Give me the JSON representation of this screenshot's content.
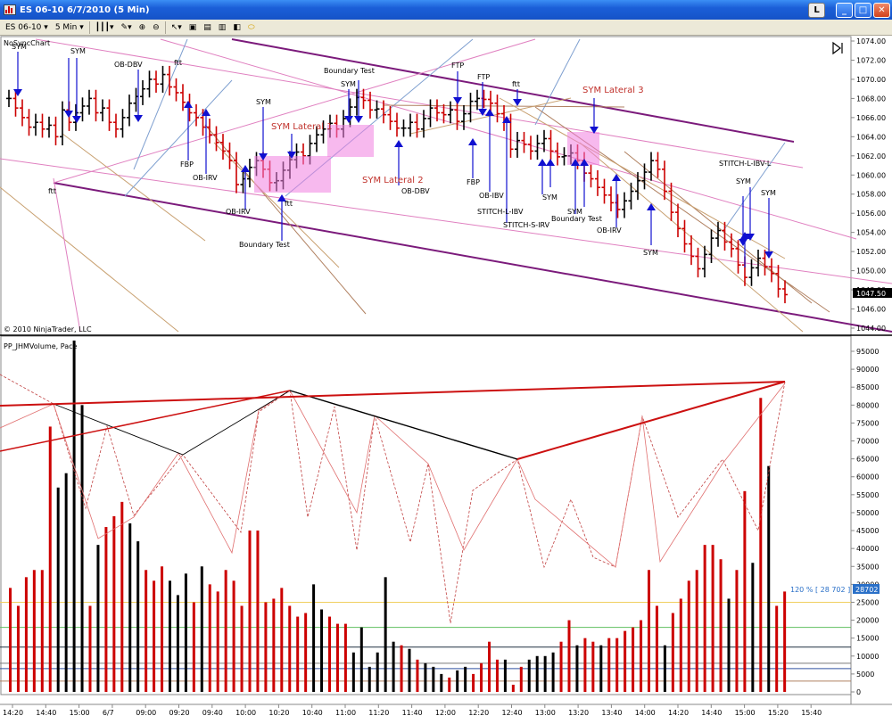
{
  "window": {
    "title": "ES 06-10  6/7/2010 (5 Min)",
    "l_button": "L",
    "min": "_",
    "max": "□",
    "close": "✕"
  },
  "toolbar": {
    "instrument": "ES 06-10",
    "interval": "5 Min"
  },
  "price_panel": {
    "chart_label": "NoSyncChart",
    "copyright": "© 2010 NinjaTrader, LLC",
    "last_price": "1047.50",
    "y_ticks": [
      "1074.00",
      "1072.00",
      "1070.00",
      "1068.00",
      "1066.00",
      "1064.00",
      "1062.00",
      "1060.00",
      "1058.00",
      "1056.00",
      "1054.00",
      "1052.00",
      "1050.00",
      "1048.00",
      "1046.00",
      "1044.00"
    ],
    "annotations": {
      "sym_a": "SYM",
      "sym_b": "SYM",
      "ob_dbv_a": "OB-DBV",
      "ftt_a": "ftt",
      "ftt_b": "ftt",
      "fbp_a": "FBP",
      "ob_irv_a": "OB-IRV",
      "sym_c": "SYM",
      "ob_irv_b": "OB-IRV",
      "boundary_a": "Boundary Test",
      "ftt_c": "ftt",
      "sym_lateral_1": "SYM Lateral 1",
      "boundary_b": "Boundary Test",
      "sym_d": "SYM",
      "sym_lateral_2": "SYM Lateral 2",
      "ob_dbv_b": "OB-DBV",
      "ftp_a": "FTP",
      "ftp_b": "FTP",
      "ftt_d": "ftt",
      "fbp_b": "FBP",
      "ob_ibv": "OB-IBV",
      "stitch_l_ibv": "STITCH-L-IBV",
      "stitch_s_irv": "STITCH-S-IRV",
      "sym_e": "SYM",
      "sym_lateral_3": "SYM Lateral 3",
      "sym_f": "SYM",
      "boundary_c": "Boundary Test",
      "ob_irv_c": "OB-IRV",
      "sym_g": "SYM",
      "stitch_l_ibv_l": "STITCH-L-IBV-L",
      "sym_h": "SYM",
      "sym_i": "SYM"
    }
  },
  "volume_panel": {
    "label": "PP_JHMVolume, Pace",
    "pace_label": "120 % [ 28 702 ]",
    "pace_value": "28702",
    "y_ticks": [
      "95000",
      "90000",
      "85000",
      "80000",
      "75000",
      "70000",
      "65000",
      "60000",
      "55000",
      "50000",
      "45000",
      "40000",
      "35000",
      "30000",
      "25000",
      "20000",
      "15000",
      "10000",
      "5000",
      "0"
    ]
  },
  "x_axis": {
    "ticks": [
      "14:20",
      "14:40",
      "15:00",
      "6/7",
      "09:00",
      "09:20",
      "09:40",
      "10:00",
      "10:20",
      "10:40",
      "11:00",
      "11:20",
      "11:40",
      "12:00",
      "12:20",
      "12:40",
      "13:00",
      "13:20",
      "13:40",
      "14:00",
      "14:20",
      "14:40",
      "15:00",
      "15:20",
      "15:40"
    ]
  },
  "colors": {
    "up": "#000000",
    "down": "#cc0000",
    "channel": "#7b1a7b",
    "pink_line": "#e080c0",
    "lateral_box": "#f080e0",
    "arrow": "#1010d0",
    "annotation_red": "#c0302a"
  }
}
